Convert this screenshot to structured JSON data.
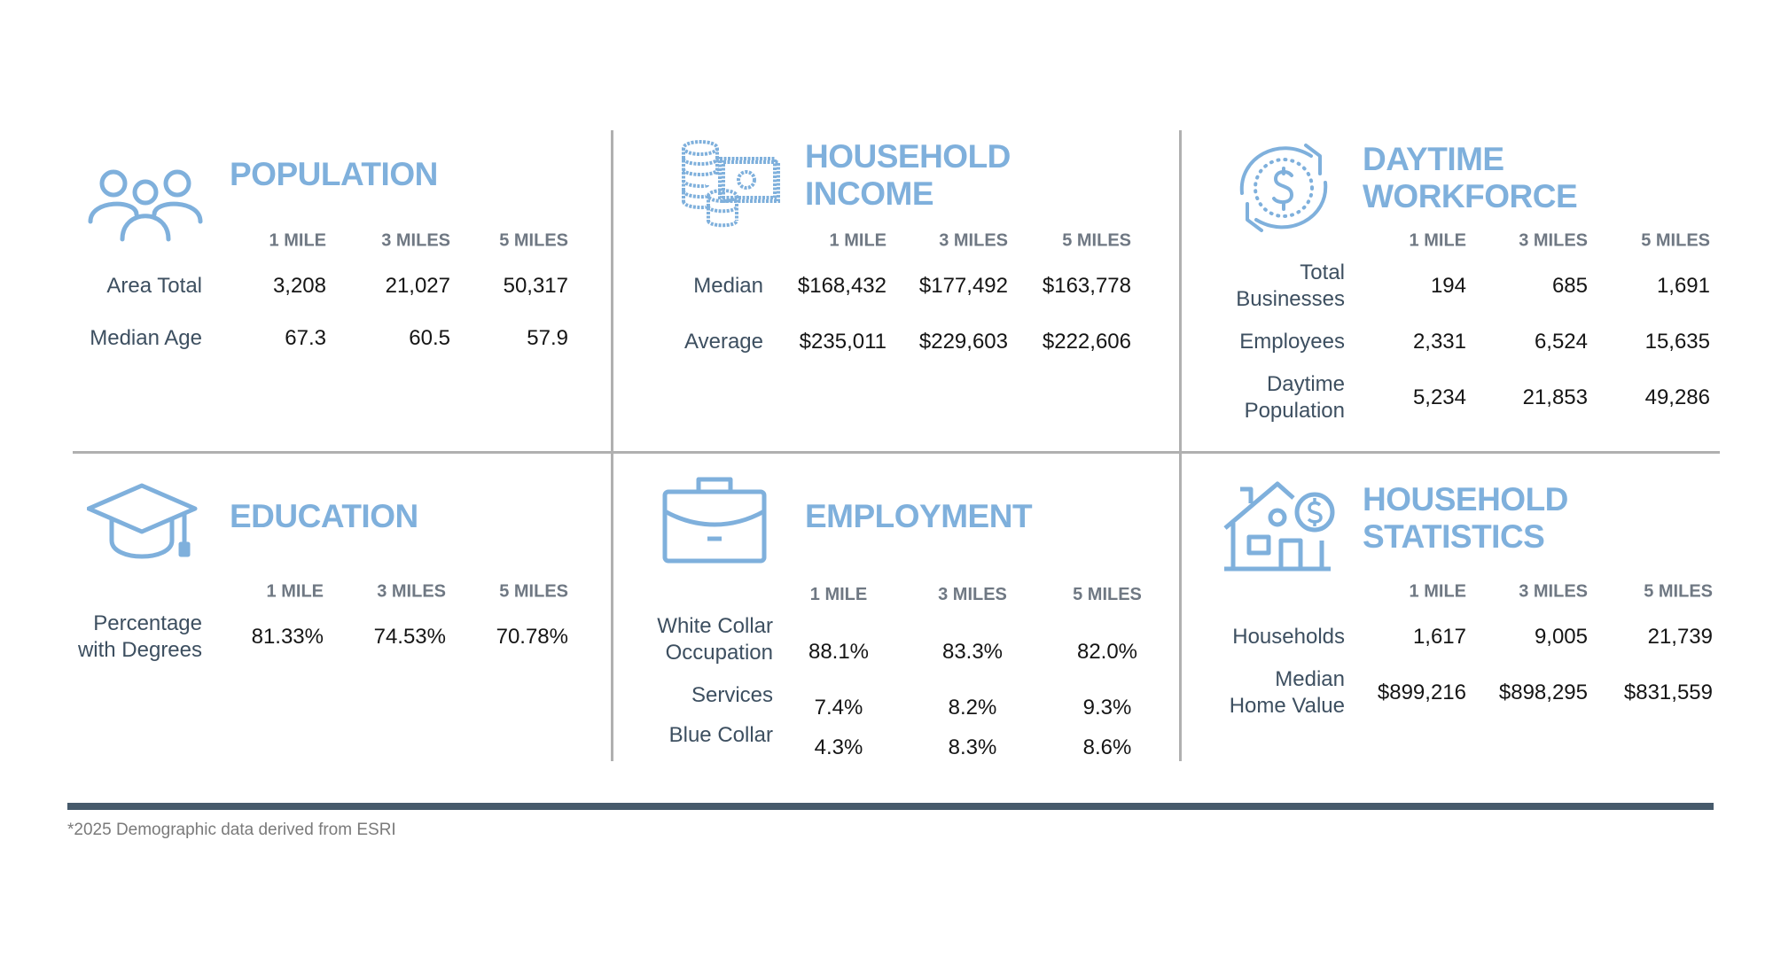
{
  "accent_color": "#7fb0dc",
  "sections": {
    "population": {
      "icon": "people-group-icon",
      "title": "POPULATION",
      "columns": [
        "1 MILE",
        "3 MILES",
        "5 MILES"
      ],
      "rows": [
        {
          "label": "Area Total",
          "values": [
            "3,208",
            "21,027",
            "50,317"
          ]
        },
        {
          "label": "Median Age",
          "values": [
            "67.3",
            "60.5",
            "57.9"
          ]
        }
      ]
    },
    "household_income": {
      "icon": "coins-cash-icon",
      "title": "HOUSEHOLD\nINCOME",
      "columns": [
        "1 MILE",
        "3 MILES",
        "5 MILES"
      ],
      "rows": [
        {
          "label": "Median",
          "values": [
            "$168,432",
            "$177,492",
            "$163,778"
          ]
        },
        {
          "label": "Average",
          "values": [
            "$235,011",
            "$229,603",
            "$222,606"
          ]
        }
      ]
    },
    "daytime_workforce": {
      "icon": "dollar-cycle-icon",
      "title": "DAYTIME\nWORKFORCE",
      "columns": [
        "1 MILE",
        "3 MILES",
        "5 MILES"
      ],
      "rows": [
        {
          "label": "Total\nBusinesses",
          "values": [
            "194",
            "685",
            "1,691"
          ]
        },
        {
          "label": "Employees",
          "values": [
            "2,331",
            "6,524",
            "15,635"
          ]
        },
        {
          "label": "Daytime\nPopulation",
          "values": [
            "5,234",
            "21,853",
            "49,286"
          ]
        }
      ]
    },
    "education": {
      "icon": "graduation-cap-icon",
      "title": "EDUCATION",
      "columns": [
        "1 MILE",
        "3 MILES",
        "5 MILES"
      ],
      "rows": [
        {
          "label": "Percentage\nwith Degrees",
          "values": [
            "81.33%",
            "74.53%",
            "70.78%"
          ]
        }
      ]
    },
    "employment": {
      "icon": "briefcase-icon",
      "title": "EMPLOYMENT",
      "columns": [
        "1 MILE",
        "3 MILES",
        "5 MILES"
      ],
      "rows": [
        {
          "label": "White Collar\nOccupation",
          "values": [
            "88.1%",
            "83.3%",
            "82.0%"
          ]
        },
        {
          "label": "Services",
          "values": [
            "7.4%",
            "8.2%",
            "9.3%"
          ]
        },
        {
          "label": "Blue Collar",
          "values": [
            "4.3%",
            "8.3%",
            "8.6%"
          ]
        }
      ]
    },
    "household_statistics": {
      "icon": "house-dollar-icon",
      "title": "HOUSEHOLD\nSTATISTICS",
      "columns": [
        "1 MILE",
        "3 MILES",
        "5 MILES"
      ],
      "rows": [
        {
          "label": "Households",
          "values": [
            "1,617",
            "9,005",
            "21,739"
          ]
        },
        {
          "label": "Median\nHome Value",
          "values": [
            "$899,216",
            "$898,295",
            "$831,559"
          ]
        }
      ]
    }
  },
  "footnote": "*2025 Demographic data derived from ESRI"
}
